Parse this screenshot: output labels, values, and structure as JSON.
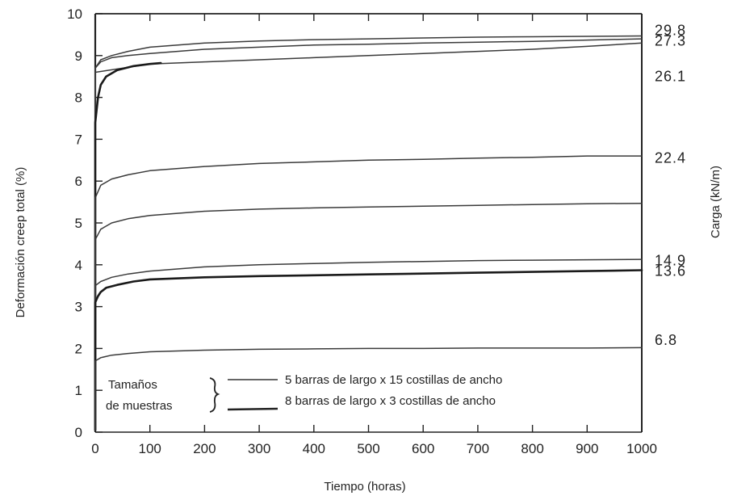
{
  "chart_data": {
    "type": "line",
    "xlabel": "Tiempo (horas)",
    "ylabel": "Deformación creep total (%)",
    "y2label": "Carga (kN/m)",
    "xlim": [
      0,
      1000
    ],
    "ylim": [
      0,
      10
    ],
    "xticks": [
      0,
      100,
      200,
      300,
      400,
      500,
      600,
      700,
      800,
      900,
      1000
    ],
    "yticks": [
      0,
      1,
      2,
      3,
      4,
      5,
      6,
      7,
      8,
      9,
      10
    ],
    "xtick_labels": [
      "0",
      "100",
      "200",
      "300",
      "400",
      "500",
      "600",
      "700",
      "800",
      "900",
      "1000"
    ],
    "ytick_labels": [
      "0",
      "1",
      "2",
      "3",
      "4",
      "5",
      "6",
      "7",
      "8",
      "9",
      "10"
    ],
    "grid": false,
    "legend": {
      "title_lines": [
        "Tamaños",
        "de muestras"
      ],
      "entries": [
        "5 barras de largo x 15 costillas de ancho",
        "8 barras de largo x 3 costillas de ancho"
      ]
    },
    "right_labels": [
      {
        "text": "29.8",
        "y": 9.6
      },
      {
        "text": "27.3",
        "y": 9.35
      },
      {
        "text": "26.1",
        "y": 8.5
      },
      {
        "text": "22.4",
        "y": 6.55
      },
      {
        "text": "14.9",
        "y": 4.1
      },
      {
        "text": "13.6",
        "y": 3.85
      },
      {
        "text": "6.8",
        "y": 2.2
      }
    ],
    "series": [
      {
        "type": "5x15",
        "x": [
          0,
          10,
          30,
          60,
          100,
          200,
          300,
          400,
          500,
          600,
          700,
          800,
          900,
          1000
        ],
        "y": [
          8.7,
          8.9,
          9.0,
          9.1,
          9.2,
          9.3,
          9.35,
          9.38,
          9.4,
          9.42,
          9.44,
          9.45,
          9.46,
          9.47
        ]
      },
      {
        "type": "5x15",
        "x": [
          0,
          10,
          30,
          60,
          100,
          200,
          300,
          400,
          500,
          600,
          700,
          800,
          900,
          1000
        ],
        "y": [
          8.7,
          8.85,
          8.95,
          9.0,
          9.05,
          9.15,
          9.2,
          9.25,
          9.27,
          9.3,
          9.32,
          9.34,
          9.37,
          9.4
        ]
      },
      {
        "type": "5x15",
        "x": [
          0,
          100,
          200,
          300,
          400,
          500,
          600,
          700,
          800,
          900,
          1000
        ],
        "y": [
          8.6,
          8.8,
          8.85,
          8.9,
          8.95,
          9.0,
          9.05,
          9.1,
          9.15,
          9.22,
          9.3
        ]
      },
      {
        "type": "8x3",
        "x": [
          0,
          5,
          10,
          20,
          40,
          70,
          100,
          120
        ],
        "y": [
          7.4,
          8.0,
          8.3,
          8.5,
          8.65,
          8.75,
          8.8,
          8.82
        ]
      },
      {
        "type": "5x15",
        "x": [
          0,
          10,
          30,
          60,
          100,
          200,
          300,
          400,
          500,
          600,
          700,
          800,
          900,
          1000
        ],
        "y": [
          5.6,
          5.9,
          6.05,
          6.15,
          6.25,
          6.35,
          6.42,
          6.46,
          6.5,
          6.52,
          6.55,
          6.57,
          6.6,
          6.6
        ]
      },
      {
        "type": "5x15",
        "x": [
          0,
          10,
          30,
          60,
          100,
          200,
          300,
          400,
          500,
          600,
          700,
          800,
          900,
          1000
        ],
        "y": [
          4.6,
          4.85,
          5.0,
          5.1,
          5.18,
          5.28,
          5.33,
          5.36,
          5.38,
          5.4,
          5.42,
          5.44,
          5.46,
          5.47
        ]
      },
      {
        "type": "5x15",
        "x": [
          0,
          10,
          30,
          60,
          100,
          200,
          300,
          400,
          500,
          600,
          700,
          800,
          900,
          1000
        ],
        "y": [
          3.5,
          3.6,
          3.7,
          3.78,
          3.85,
          3.95,
          4.0,
          4.03,
          4.06,
          4.08,
          4.1,
          4.11,
          4.12,
          4.13
        ]
      },
      {
        "type": "8x3",
        "x": [
          0,
          5,
          10,
          20,
          40,
          70,
          100,
          200,
          300,
          400,
          500,
          600,
          700,
          800,
          900,
          1000
        ],
        "y": [
          3.1,
          3.25,
          3.35,
          3.45,
          3.52,
          3.6,
          3.65,
          3.7,
          3.73,
          3.75,
          3.77,
          3.79,
          3.81,
          3.83,
          3.85,
          3.87
        ]
      },
      {
        "type": "5x15",
        "x": [
          0,
          10,
          30,
          60,
          100,
          200,
          300,
          400,
          500,
          600,
          700,
          800,
          900,
          1000
        ],
        "y": [
          1.7,
          1.78,
          1.84,
          1.88,
          1.92,
          1.96,
          1.98,
          1.99,
          2.0,
          2.0,
          2.01,
          2.01,
          2.01,
          2.02
        ]
      }
    ]
  }
}
